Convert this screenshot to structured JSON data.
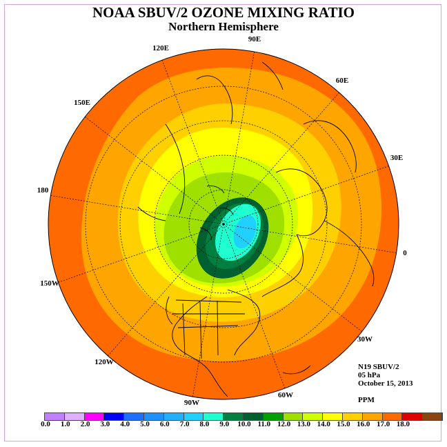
{
  "title": "NOAA SBUV/2 OZONE MIXING RATIO",
  "subtitle": "Northern Hemisphere",
  "longitude_labels": [
    {
      "name": "lon-90e",
      "text": "90E"
    },
    {
      "name": "lon-60e",
      "text": "60E"
    },
    {
      "name": "lon-30e",
      "text": "30E"
    },
    {
      "name": "lon-0",
      "text": "0"
    },
    {
      "name": "lon-30w",
      "text": "30W"
    },
    {
      "name": "lon-60w",
      "text": "60W"
    },
    {
      "name": "lon-90w",
      "text": "90W"
    },
    {
      "name": "lon-120w",
      "text": "120W"
    },
    {
      "name": "lon-150w",
      "text": "150W"
    },
    {
      "name": "lon-180",
      "text": "180"
    },
    {
      "name": "lon-150e",
      "text": "150E"
    },
    {
      "name": "lon-120e",
      "text": "120E"
    }
  ],
  "info": {
    "satellite": "N19 SBUV/2",
    "level": "05 hPa",
    "date": "October 15, 2013",
    "units": "PPM"
  },
  "colorbar": {
    "colors": [
      "#c080ff",
      "#e0b0ff",
      "#ff00ff",
      "#0000ff",
      "#1e6fff",
      "#1e90ff",
      "#20b0ff",
      "#20d0ff",
      "#20ffd0",
      "#008040",
      "#006030",
      "#00a000",
      "#a0e000",
      "#d0ff00",
      "#ffff00",
      "#ffd000",
      "#ffa500",
      "#ff6a00",
      "#e00000",
      "#8b4513"
    ],
    "ticks": [
      "0.0",
      "1.0",
      "2.0",
      "3.0",
      "4.0",
      "5.0",
      "6.0",
      "7.0",
      "8.0",
      "9.0",
      "10.0",
      "11.0",
      "12.0",
      "13.0",
      "14.0",
      "15.0",
      "16.0",
      "17.0",
      "18.0"
    ]
  },
  "contour_colors": {
    "band_15_16": "#ff6a00",
    "band_14_15": "#ffa500",
    "band_13_14": "#ffd000",
    "band_12_13": "#ffff00",
    "band_11_12": "#d0ff00",
    "band_10_11": "#a0e000",
    "band_9_10": "#006030",
    "band_8_9": "#008040",
    "band_7_8": "#20ffd0",
    "band_6_7": "#20d0ff"
  }
}
